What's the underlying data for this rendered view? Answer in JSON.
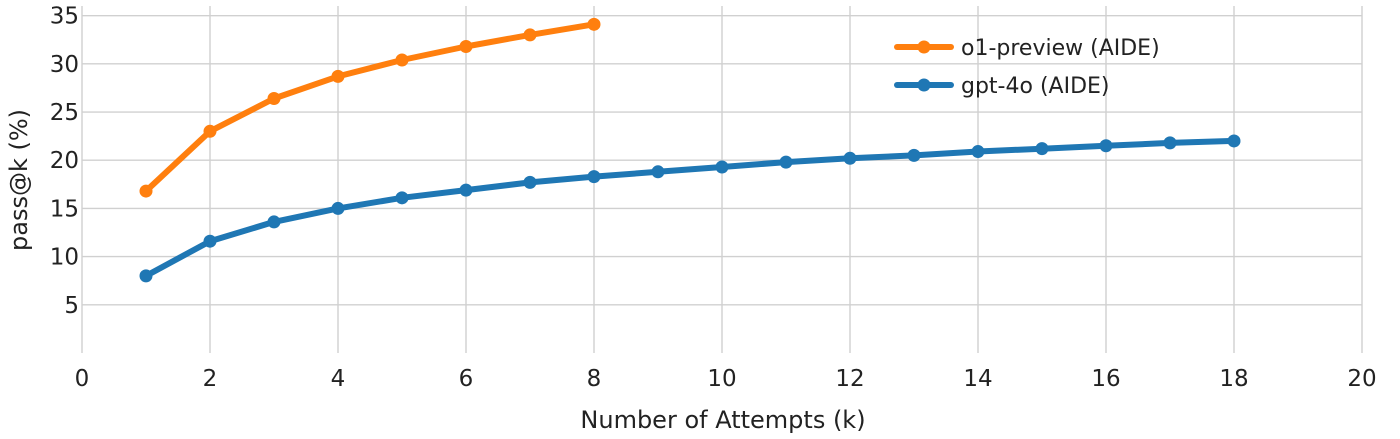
{
  "chart_data": {
    "type": "line",
    "title": "",
    "xlabel": "Number of Attempts (k)",
    "ylabel": "pass@k (%)",
    "xlim": [
      0,
      20
    ],
    "ylim": [
      0,
      36
    ],
    "x_ticks": [
      0,
      2,
      4,
      6,
      8,
      10,
      12,
      14,
      16,
      18,
      20
    ],
    "y_ticks": [
      5,
      10,
      15,
      20,
      25,
      30,
      35
    ],
    "grid": true,
    "legend_position": "top-right",
    "series": [
      {
        "name": "o1-preview (AIDE)",
        "color": "#ff7f0e",
        "x": [
          1,
          2,
          3,
          4,
          5,
          6,
          7,
          8
        ],
        "values": [
          16.8,
          23.0,
          26.4,
          28.7,
          30.4,
          31.8,
          33.0,
          34.1
        ]
      },
      {
        "name": "gpt-4o (AIDE)",
        "color": "#1f77b4",
        "x": [
          1,
          2,
          3,
          4,
          5,
          6,
          7,
          8,
          9,
          10,
          11,
          12,
          13,
          14,
          15,
          16,
          17,
          18
        ],
        "values": [
          8.0,
          11.6,
          13.6,
          15.0,
          16.1,
          16.9,
          17.7,
          18.3,
          18.8,
          19.3,
          19.8,
          20.2,
          20.5,
          20.9,
          21.2,
          21.5,
          21.8,
          22.0
        ]
      }
    ]
  }
}
